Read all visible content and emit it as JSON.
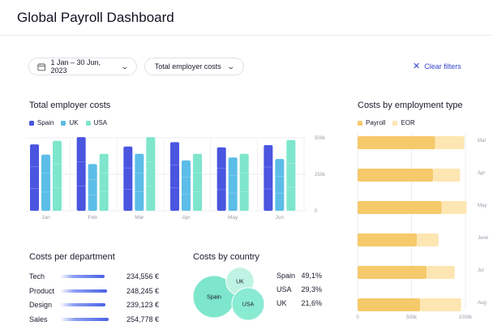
{
  "page": {
    "title": "Global Payroll Dashboard"
  },
  "filters": {
    "date_range": "1 Jan – 30 Jun, 2023",
    "metric": "Total employer costs",
    "clear_label": "Clear filters"
  },
  "colors": {
    "spain": "#4a55e0",
    "uk": "#5bbde8",
    "usa": "#7ee6cc",
    "payroll": "#f6c96b",
    "eor": "#fde6b1",
    "accent": "#3344cc"
  },
  "total_costs": {
    "title": "Total employer costs",
    "legend": [
      "Spain",
      "UK",
      "USA"
    ],
    "chart_data": {
      "type": "bar",
      "categories": [
        "Jan",
        "Feb",
        "Mar",
        "Apr",
        "May",
        "Jun"
      ],
      "y_ticks": [
        "500k",
        "250k",
        "0"
      ],
      "ylim": [
        0,
        500000
      ],
      "series": [
        {
          "name": "Spain",
          "values": [
            455000,
            505000,
            440000,
            470000,
            435000,
            450000
          ]
        },
        {
          "name": "UK",
          "values": [
            385000,
            320000,
            390000,
            345000,
            365000,
            355000
          ]
        },
        {
          "name": "USA",
          "values": [
            480000,
            390000,
            505000,
            390000,
            390000,
            485000
          ]
        }
      ]
    }
  },
  "employment_type": {
    "title": "Costs by employment type",
    "legend": [
      "Payroll",
      "EOR"
    ],
    "chart_data": {
      "type": "bar",
      "orientation": "horizontal",
      "categories": [
        "Mar",
        "Apr",
        "May",
        "June",
        "Jul",
        "Aug"
      ],
      "x_ticks": [
        "0",
        "500k",
        "1000k"
      ],
      "xlim": [
        0,
        1000000
      ],
      "series": [
        {
          "name": "Payroll",
          "values": [
            720000,
            700000,
            780000,
            550000,
            640000,
            580000
          ]
        },
        {
          "name": "EOR",
          "values": [
            270000,
            250000,
            230000,
            200000,
            260000,
            380000
          ]
        }
      ]
    }
  },
  "departments": {
    "title": "Costs per department",
    "rows": [
      {
        "name": "Tech",
        "value": "234,556 €",
        "amount": 234556
      },
      {
        "name": "Product",
        "value": "248,245 €",
        "amount": 248245
      },
      {
        "name": "Design",
        "value": "239,123 €",
        "amount": 239123
      },
      {
        "name": "Sales",
        "value": "254,778 €",
        "amount": 254778
      }
    ]
  },
  "countries": {
    "title": "Costs by country",
    "bubbles": [
      {
        "name": "Spain",
        "share": 49.1
      },
      {
        "name": "UK",
        "share": 21.6
      },
      {
        "name": "USA",
        "share": 29.3
      }
    ],
    "rows": [
      {
        "name": "Spain",
        "value": "49,1%"
      },
      {
        "name": "USA",
        "value": "29,3%"
      },
      {
        "name": "UK",
        "value": "21,6%"
      }
    ]
  }
}
